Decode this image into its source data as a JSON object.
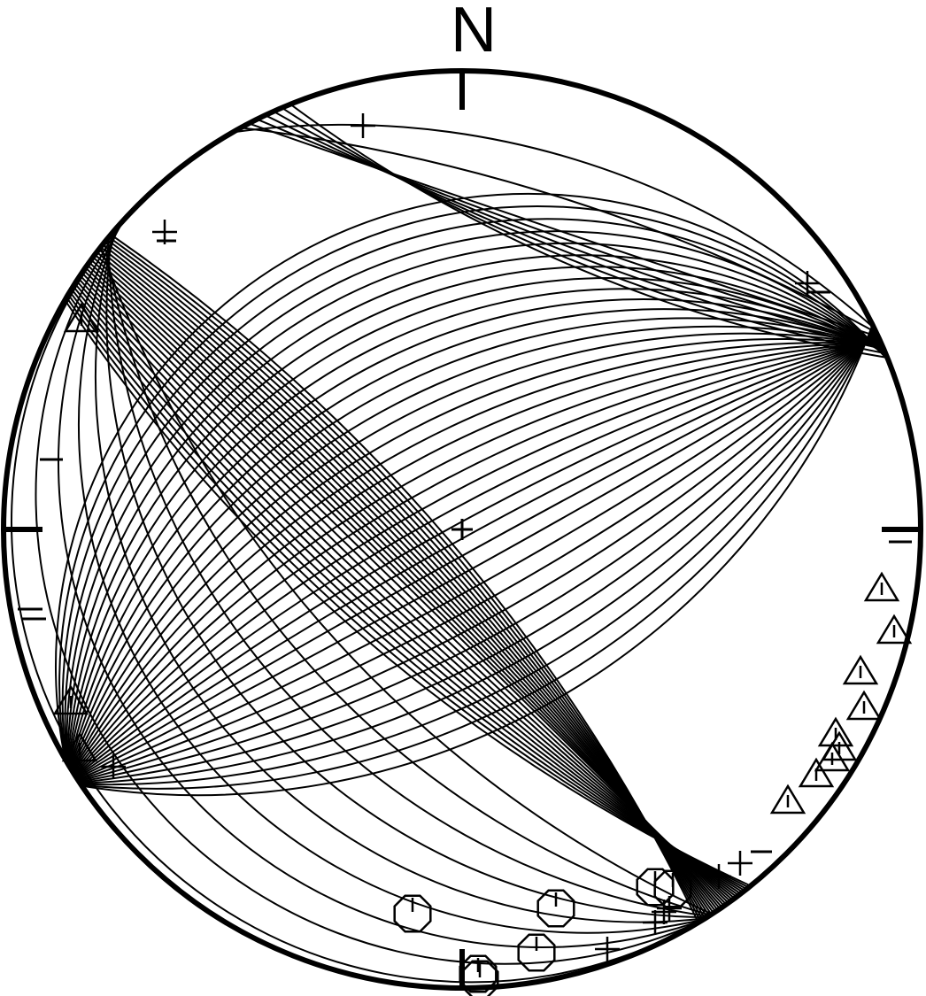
{
  "diagram": {
    "type": "stereonet",
    "north_label": "N",
    "colors": {
      "stroke": "#000000",
      "background": "#ffffff"
    },
    "great_circles_family_1": {
      "count": 26,
      "pivot_a_azimuth": 305,
      "pivot_b_azimuth": 145
    },
    "great_circles_family_2": {
      "count": 34,
      "pivot_a_azimuth": 66,
      "pivot_b_azimuth": 238
    },
    "triangle_poles": 12,
    "octagon_poles": 7,
    "cross_poles": 10,
    "dash_marks": 7
  }
}
